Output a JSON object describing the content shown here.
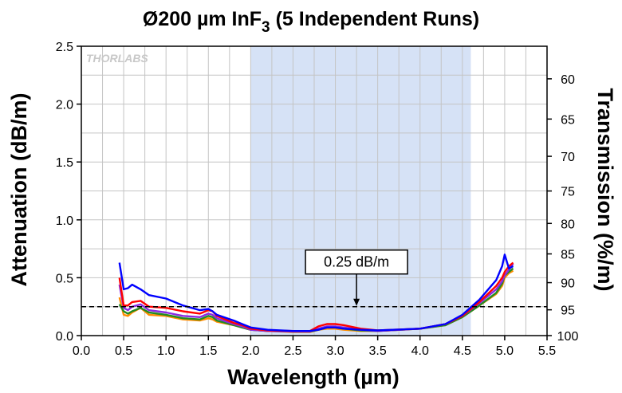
{
  "chart_data": {
    "type": "line",
    "title_main": "Ø200 µm InF",
    "title_sub": "3",
    "title_tail": " (5 Independent Runs)",
    "xlabel": "Wavelength (µm)",
    "ylabel": "Attenuation (dB/m)",
    "y2label": "Transmission (%/m)",
    "watermark": "THORLABS",
    "xlim": [
      0.0,
      5.5
    ],
    "ylim": [
      0.0,
      2.5
    ],
    "x_ticks": [
      "0.0",
      "0.5",
      "1.0",
      "1.5",
      "2.0",
      "2.5",
      "3.0",
      "3.5",
      "4.0",
      "4.5",
      "5.0",
      "5.5"
    ],
    "y_ticks": [
      "0.0",
      "0.5",
      "1.0",
      "1.5",
      "2.0",
      "2.5"
    ],
    "y2_ticks": [
      "60",
      "65",
      "70",
      "75",
      "80",
      "85",
      "90",
      "95",
      "100"
    ],
    "grid": true,
    "highlight_band": [
      2.0,
      4.6
    ],
    "reference_line": 0.25,
    "annotation": {
      "text": "0.25 dB/m",
      "x": 3.25,
      "y": 0.25
    },
    "colors": {
      "band": "#d6e2f6",
      "grid": "#c4c4c4",
      "series": [
        "#ff8c00",
        "#228b22",
        "#8b2be2",
        "#ff0000",
        "#0000ff"
      ]
    },
    "series": [
      {
        "x": [
          0.45,
          0.5,
          0.55,
          0.6,
          0.7,
          0.8,
          1.0,
          1.2,
          1.4,
          1.5,
          1.55,
          1.6,
          1.8,
          1.9,
          2.0,
          2.2,
          2.5,
          2.7,
          2.8,
          2.9,
          3.0,
          3.1,
          3.3,
          3.5,
          4.0,
          4.3,
          4.5,
          4.7,
          4.9,
          4.97,
          5.0,
          5.05,
          5.1
        ],
        "values": [
          0.33,
          0.18,
          0.17,
          0.2,
          0.24,
          0.18,
          0.17,
          0.14,
          0.13,
          0.15,
          0.14,
          0.12,
          0.09,
          0.07,
          0.05,
          0.04,
          0.03,
          0.03,
          0.05,
          0.06,
          0.06,
          0.05,
          0.04,
          0.04,
          0.06,
          0.09,
          0.16,
          0.26,
          0.36,
          0.43,
          0.5,
          0.54,
          0.56
        ]
      },
      {
        "x": [
          0.45,
          0.5,
          0.55,
          0.6,
          0.7,
          0.8,
          1.0,
          1.2,
          1.4,
          1.5,
          1.55,
          1.6,
          1.8,
          1.9,
          2.0,
          2.2,
          2.5,
          2.7,
          2.8,
          2.9,
          3.0,
          3.1,
          3.3,
          3.5,
          4.0,
          4.3,
          4.5,
          4.7,
          4.9,
          4.97,
          5.0,
          5.05,
          5.1
        ],
        "values": [
          0.27,
          0.21,
          0.19,
          0.21,
          0.24,
          0.2,
          0.18,
          0.15,
          0.14,
          0.17,
          0.16,
          0.13,
          0.09,
          0.07,
          0.05,
          0.04,
          0.035,
          0.035,
          0.05,
          0.07,
          0.07,
          0.06,
          0.045,
          0.04,
          0.06,
          0.09,
          0.16,
          0.26,
          0.37,
          0.45,
          0.52,
          0.55,
          0.58
        ]
      },
      {
        "x": [
          0.45,
          0.5,
          0.55,
          0.6,
          0.7,
          0.8,
          1.0,
          1.2,
          1.4,
          1.5,
          1.55,
          1.6,
          1.8,
          1.9,
          2.0,
          2.2,
          2.5,
          2.7,
          2.8,
          2.9,
          3.0,
          3.1,
          3.3,
          3.5,
          4.0,
          4.3,
          4.5,
          4.7,
          4.9,
          4.97,
          5.0,
          5.05,
          5.1
        ],
        "values": [
          0.44,
          0.24,
          0.22,
          0.25,
          0.27,
          0.22,
          0.2,
          0.17,
          0.16,
          0.19,
          0.18,
          0.15,
          0.1,
          0.08,
          0.05,
          0.04,
          0.035,
          0.035,
          0.06,
          0.08,
          0.08,
          0.07,
          0.05,
          0.04,
          0.06,
          0.1,
          0.17,
          0.28,
          0.4,
          0.47,
          0.52,
          0.57,
          0.62
        ]
      },
      {
        "x": [
          0.45,
          0.5,
          0.55,
          0.6,
          0.7,
          0.8,
          1.0,
          1.2,
          1.4,
          1.5,
          1.55,
          1.6,
          1.8,
          1.9,
          2.0,
          2.2,
          2.5,
          2.7,
          2.8,
          2.9,
          3.0,
          3.1,
          3.3,
          3.5,
          4.0,
          4.3,
          4.5,
          4.7,
          4.9,
          4.97,
          5.0,
          5.05,
          5.1
        ],
        "values": [
          0.5,
          0.26,
          0.26,
          0.29,
          0.3,
          0.25,
          0.24,
          0.21,
          0.19,
          0.22,
          0.21,
          0.17,
          0.11,
          0.09,
          0.06,
          0.045,
          0.04,
          0.04,
          0.08,
          0.1,
          0.1,
          0.09,
          0.06,
          0.045,
          0.06,
          0.1,
          0.17,
          0.29,
          0.43,
          0.5,
          0.55,
          0.6,
          0.63
        ]
      },
      {
        "x": [
          0.45,
          0.5,
          0.55,
          0.6,
          0.7,
          0.8,
          1.0,
          1.2,
          1.4,
          1.5,
          1.55,
          1.6,
          1.8,
          1.9,
          2.0,
          2.2,
          2.5,
          2.7,
          2.8,
          2.9,
          3.0,
          3.1,
          3.3,
          3.5,
          4.0,
          4.3,
          4.5,
          4.7,
          4.9,
          4.97,
          5.0,
          5.05,
          5.1
        ],
        "values": [
          0.63,
          0.4,
          0.41,
          0.44,
          0.4,
          0.35,
          0.32,
          0.26,
          0.22,
          0.23,
          0.21,
          0.18,
          0.13,
          0.1,
          0.07,
          0.05,
          0.04,
          0.04,
          0.05,
          0.07,
          0.07,
          0.06,
          0.05,
          0.045,
          0.06,
          0.1,
          0.18,
          0.31,
          0.48,
          0.6,
          0.7,
          0.58,
          0.6
        ]
      }
    ]
  }
}
